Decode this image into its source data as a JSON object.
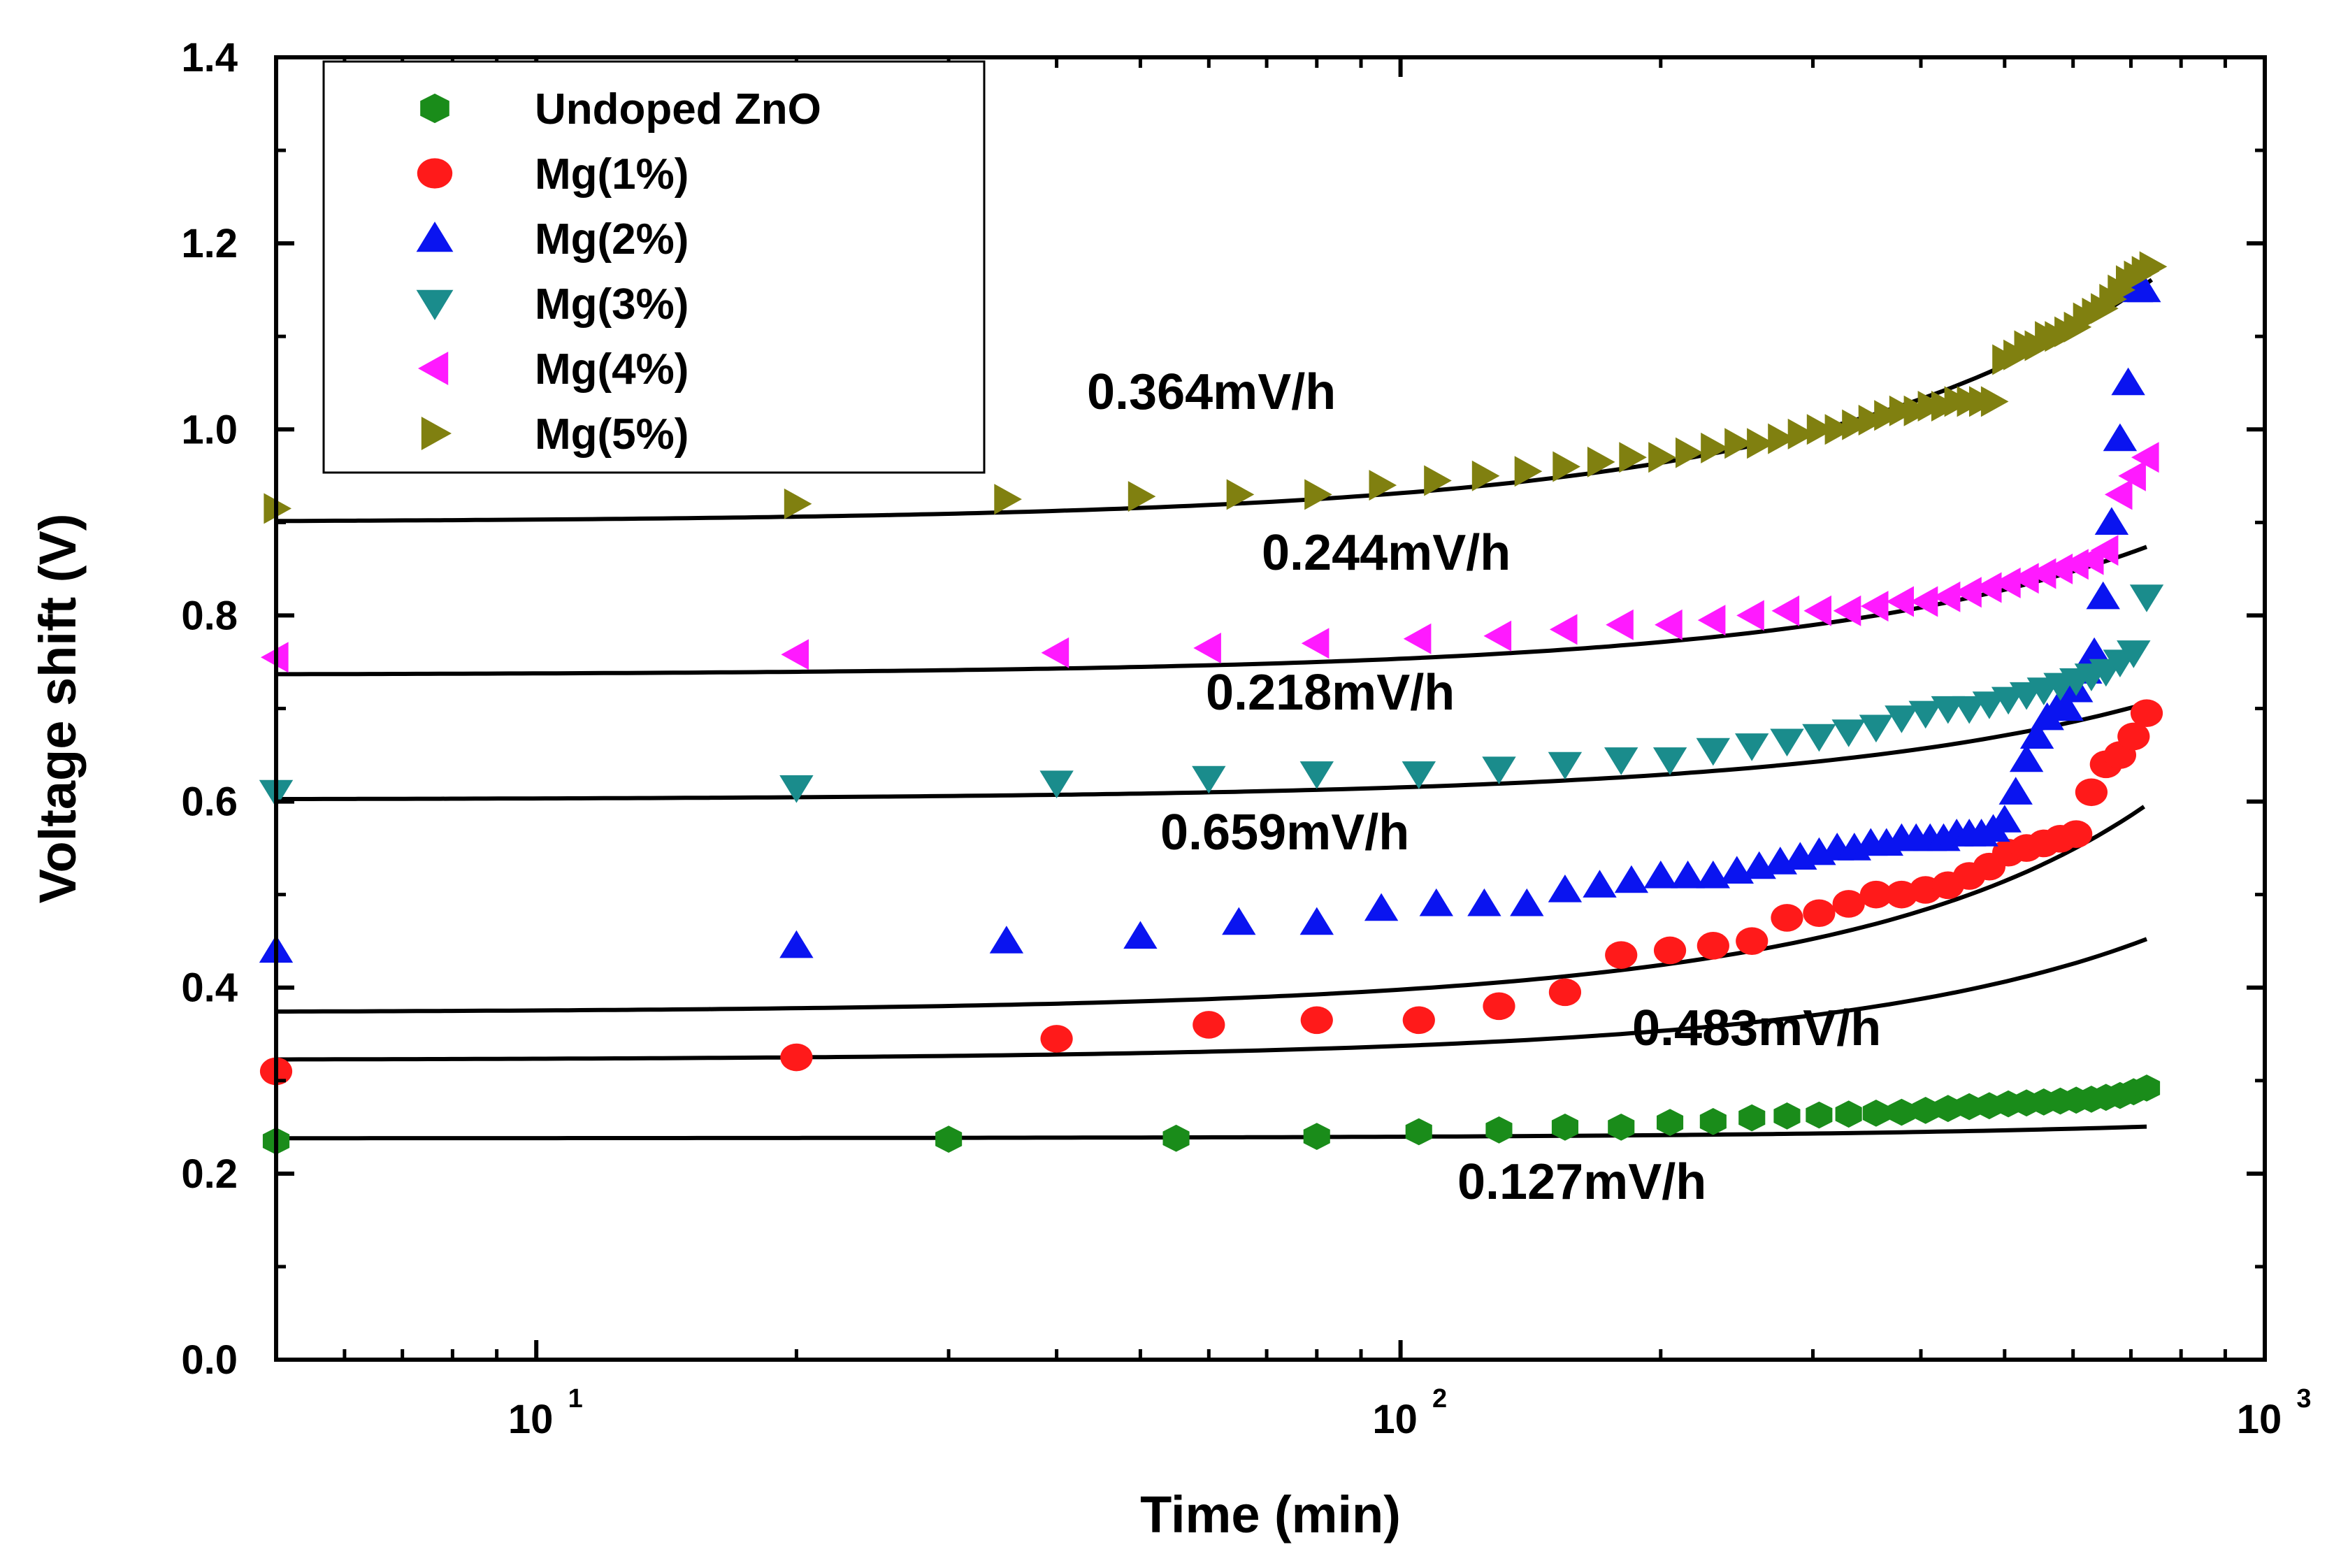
{
  "chart_data": {
    "type": "scatter",
    "title": "",
    "xlabel": "Time (min)",
    "ylabel": "Voltage shift (V)",
    "xscale": "log",
    "xlim": [
      5,
      1000
    ],
    "ylim": [
      0.0,
      1.4
    ],
    "grid": false,
    "legend_position": "top-left",
    "x_ticks": [
      10,
      100,
      1000
    ],
    "x_tick_labels": [
      {
        "base": "10",
        "exp": "1"
      },
      {
        "base": "10",
        "exp": "2"
      },
      {
        "base": "10",
        "exp": "3"
      }
    ],
    "y_ticks": [
      0.0,
      0.2,
      0.4,
      0.6,
      0.8,
      1.0,
      1.2,
      1.4
    ],
    "y_tick_labels": [
      "0.0",
      "0.2",
      "0.4",
      "0.6",
      "0.8",
      "1.0",
      "1.2",
      "1.4"
    ],
    "series": [
      {
        "name": "Undoped ZnO",
        "marker": "hexagon",
        "color": "#1a8c1a",
        "fit_rate": "0.127mV/h",
        "x": [
          5,
          30,
          55,
          80,
          105,
          130,
          155,
          180,
          205,
          230,
          255,
          280,
          305,
          330,
          355,
          380,
          405,
          430,
          455,
          480,
          505,
          530,
          555,
          580,
          605,
          630,
          655,
          680,
          705,
          730
        ],
        "y": [
          0.235,
          0.237,
          0.238,
          0.24,
          0.245,
          0.247,
          0.25,
          0.25,
          0.255,
          0.256,
          0.26,
          0.262,
          0.263,
          0.264,
          0.265,
          0.266,
          0.268,
          0.27,
          0.272,
          0.273,
          0.275,
          0.276,
          0.277,
          0.278,
          0.279,
          0.28,
          0.282,
          0.284,
          0.288,
          0.292
        ],
        "fit": {
          "y0": 0.238,
          "k": 7.05e-05
        }
      },
      {
        "name": "Mg(1%)",
        "marker": "circle",
        "color": "#ff1a1a",
        "fit_rate": "0.483mV/h",
        "x": [
          5,
          20,
          40,
          60,
          80,
          105,
          130,
          155,
          180,
          205,
          230,
          255,
          280,
          305,
          330,
          355,
          380,
          405,
          430,
          455,
          480,
          505,
          530,
          555,
          580,
          605,
          630,
          655,
          680,
          705,
          730
        ],
        "y": [
          0.31,
          0.325,
          0.345,
          0.36,
          0.365,
          0.365,
          0.38,
          0.395,
          0.435,
          0.44,
          0.445,
          0.45,
          0.475,
          0.48,
          0.49,
          0.5,
          0.5,
          0.505,
          0.51,
          0.52,
          0.53,
          0.545,
          0.55,
          0.555,
          0.56,
          0.565,
          0.61,
          0.64,
          0.65,
          0.67,
          0.695
        ],
        "fit": {
          "y0": 0.322,
          "k": 0.000465
        }
      },
      {
        "name": "Mg(2%)",
        "marker": "triangle-up",
        "color": "#0a14f0",
        "fit_rate": "0.659mV/h",
        "x": [
          5,
          20,
          35,
          50,
          65,
          80,
          95,
          110,
          125,
          140,
          155,
          170,
          185,
          200,
          215,
          230,
          245,
          260,
          275,
          290,
          305,
          320,
          335,
          350,
          365,
          380,
          395,
          410,
          425,
          440,
          455,
          470,
          485,
          500,
          515,
          530,
          545,
          560,
          575,
          590,
          605,
          620,
          635,
          650,
          665,
          680,
          695,
          710,
          725
        ],
        "y": [
          0.44,
          0.445,
          0.45,
          0.455,
          0.47,
          0.47,
          0.485,
          0.49,
          0.49,
          0.49,
          0.505,
          0.51,
          0.515,
          0.52,
          0.52,
          0.52,
          0.525,
          0.53,
          0.535,
          0.54,
          0.545,
          0.55,
          0.55,
          0.555,
          0.555,
          0.56,
          0.56,
          0.56,
          0.56,
          0.565,
          0.565,
          0.565,
          0.57,
          0.58,
          0.61,
          0.645,
          0.67,
          0.69,
          0.7,
          0.7,
          0.72,
          0.74,
          0.76,
          0.82,
          0.9,
          0.99,
          1.05,
          1.15,
          1.15
        ],
        "fit": {
          "y0": 0.373,
          "k": 0.000643
        }
      },
      {
        "name": "Mg(3%)",
        "marker": "triangle-down",
        "color": "#1a8c8c",
        "fit_rate": "0.218mV/h",
        "x": [
          5,
          20,
          40,
          60,
          80,
          105,
          130,
          155,
          180,
          205,
          230,
          255,
          280,
          305,
          330,
          355,
          380,
          405,
          430,
          455,
          480,
          505,
          530,
          555,
          580,
          605,
          630,
          655,
          680,
          705,
          730
        ],
        "y": [
          0.61,
          0.615,
          0.62,
          0.625,
          0.63,
          0.63,
          0.635,
          0.64,
          0.645,
          0.645,
          0.655,
          0.66,
          0.665,
          0.67,
          0.675,
          0.68,
          0.69,
          0.695,
          0.7,
          0.7,
          0.705,
          0.71,
          0.715,
          0.72,
          0.725,
          0.73,
          0.735,
          0.74,
          0.75,
          0.76,
          0.82
        ],
        "fit": {
          "y0": 0.602,
          "k": 0.000217
        }
      },
      {
        "name": "Mg(4%)",
        "marker": "triangle-left",
        "color": "#ff1aff",
        "fit_rate": "0.244mV/h",
        "x": [
          5,
          20,
          40,
          60,
          80,
          105,
          130,
          155,
          180,
          205,
          230,
          255,
          280,
          305,
          330,
          355,
          380,
          405,
          430,
          455,
          480,
          505,
          530,
          555,
          580,
          605,
          630,
          655,
          680,
          705,
          730
        ],
        "y": [
          0.755,
          0.758,
          0.76,
          0.765,
          0.77,
          0.775,
          0.778,
          0.785,
          0.79,
          0.79,
          0.795,
          0.8,
          0.805,
          0.805,
          0.805,
          0.81,
          0.815,
          0.815,
          0.82,
          0.825,
          0.83,
          0.835,
          0.84,
          0.845,
          0.85,
          0.855,
          0.86,
          0.87,
          0.93,
          0.95,
          0.97
        ],
        "fit": {
          "y0": 0.736,
          "k": 0.000235
        }
      },
      {
        "name": "Mg(5%)",
        "marker": "triangle-right",
        "color": "#808010",
        "fit_rate": "0.364mV/h",
        "x": [
          5,
          20,
          35,
          50,
          65,
          80,
          95,
          110,
          125,
          140,
          155,
          170,
          185,
          200,
          215,
          230,
          245,
          260,
          275,
          290,
          305,
          320,
          335,
          350,
          365,
          380,
          395,
          410,
          425,
          440,
          455,
          470,
          485,
          500,
          515,
          530,
          545,
          560,
          575,
          590,
          605,
          620,
          635,
          650,
          665,
          680,
          695,
          710,
          725,
          740
        ],
        "y": [
          0.915,
          0.92,
          0.925,
          0.928,
          0.93,
          0.93,
          0.94,
          0.945,
          0.95,
          0.955,
          0.96,
          0.965,
          0.97,
          0.97,
          0.975,
          0.98,
          0.985,
          0.985,
          0.99,
          0.995,
          1.0,
          1.0,
          1.005,
          1.01,
          1.015,
          1.02,
          1.02,
          1.025,
          1.025,
          1.03,
          1.03,
          1.03,
          1.03,
          1.075,
          1.08,
          1.09,
          1.09,
          1.1,
          1.1,
          1.105,
          1.11,
          1.12,
          1.125,
          1.13,
          1.14,
          1.15,
          1.16,
          1.165,
          1.17,
          1.175
        ],
        "fit": {
          "y0": 0.9,
          "k": 0.000344
        }
      }
    ]
  }
}
